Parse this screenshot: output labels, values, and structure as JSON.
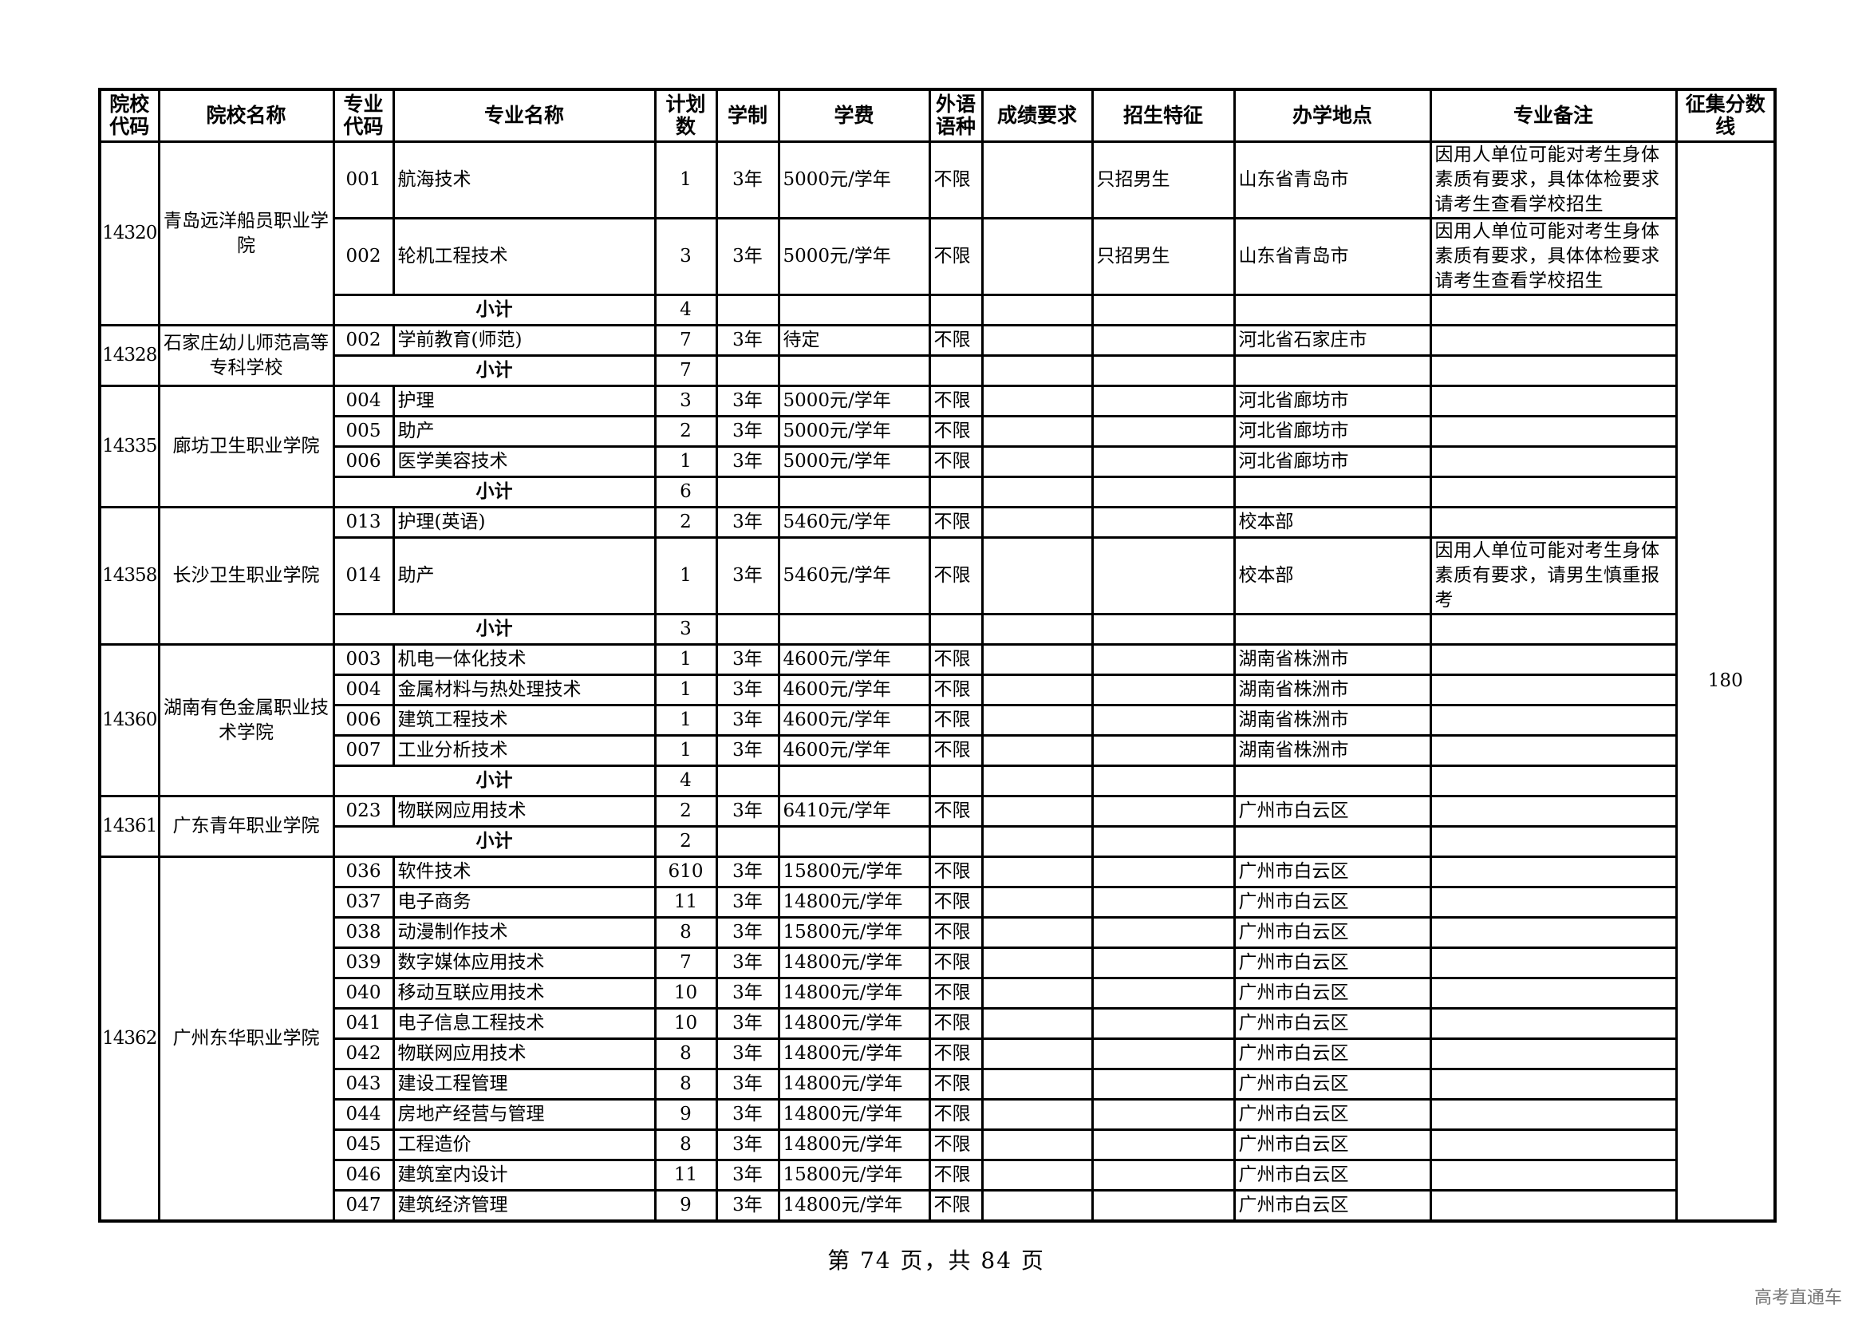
{
  "headers": [
    "院校代码",
    "院校名称",
    "专业代码",
    "专业名称",
    "计划数",
    "学制",
    "学费",
    "外语语种",
    "成绩要求",
    "招生特征",
    "办学地点",
    "专业备注",
    "征集分数线"
  ],
  "score_line": "180",
  "schools": [
    {
      "code": "14320",
      "name": "青岛远洋船员职业学院",
      "majors": [
        {
          "code": "001",
          "name": "航海技术",
          "plan": "1",
          "duration": "3年",
          "fee": "5000元/学年",
          "lang": "不限",
          "score_req": "",
          "feature": "只招男生",
          "location": "山东省青岛市",
          "remark": "因用人单位可能对考生身体素质有要求，具体体检要求请考生查看学校招生"
        },
        {
          "code": "002",
          "name": "轮机工程技术",
          "plan": "3",
          "duration": "3年",
          "fee": "5000元/学年",
          "lang": "不限",
          "score_req": "",
          "feature": "只招男生",
          "location": "山东省青岛市",
          "remark": "因用人单位可能对考生身体素质有要求，具体体检要求请考生查看学校招生"
        }
      ],
      "subtotal": {
        "label": "小计",
        "plan": "4"
      }
    },
    {
      "code": "14328",
      "name": "石家庄幼儿师范高等专科学校",
      "majors": [
        {
          "code": "002",
          "name": "学前教育(师范)",
          "plan": "7",
          "duration": "3年",
          "fee": "待定",
          "lang": "不限",
          "score_req": "",
          "feature": "",
          "location": "河北省石家庄市",
          "remark": ""
        }
      ],
      "subtotal": {
        "label": "小计",
        "plan": "7"
      }
    },
    {
      "code": "14335",
      "name": "廊坊卫生职业学院",
      "majors": [
        {
          "code": "004",
          "name": "护理",
          "plan": "3",
          "duration": "3年",
          "fee": "5000元/学年",
          "lang": "不限",
          "score_req": "",
          "feature": "",
          "location": "河北省廊坊市",
          "remark": ""
        },
        {
          "code": "005",
          "name": "助产",
          "plan": "2",
          "duration": "3年",
          "fee": "5000元/学年",
          "lang": "不限",
          "score_req": "",
          "feature": "",
          "location": "河北省廊坊市",
          "remark": ""
        },
        {
          "code": "006",
          "name": "医学美容技术",
          "plan": "1",
          "duration": "3年",
          "fee": "5000元/学年",
          "lang": "不限",
          "score_req": "",
          "feature": "",
          "location": "河北省廊坊市",
          "remark": ""
        }
      ],
      "subtotal": {
        "label": "小计",
        "plan": "6"
      }
    },
    {
      "code": "14358",
      "name": "长沙卫生职业学院",
      "majors": [
        {
          "code": "013",
          "name": "护理(英语)",
          "plan": "2",
          "duration": "3年",
          "fee": "5460元/学年",
          "lang": "不限",
          "score_req": "",
          "feature": "",
          "location": "校本部",
          "remark": ""
        },
        {
          "code": "014",
          "name": "助产",
          "plan": "1",
          "duration": "3年",
          "fee": "5460元/学年",
          "lang": "不限",
          "score_req": "",
          "feature": "",
          "location": "校本部",
          "remark": "因用人单位可能对考生身体素质有要求，请男生慎重报考"
        }
      ],
      "subtotal": {
        "label": "小计",
        "plan": "3"
      }
    },
    {
      "code": "14360",
      "name": "湖南有色金属职业技术学院",
      "majors": [
        {
          "code": "003",
          "name": "机电一体化技术",
          "plan": "1",
          "duration": "3年",
          "fee": "4600元/学年",
          "lang": "不限",
          "score_req": "",
          "feature": "",
          "location": "湖南省株洲市",
          "remark": ""
        },
        {
          "code": "004",
          "name": "金属材料与热处理技术",
          "plan": "1",
          "duration": "3年",
          "fee": "4600元/学年",
          "lang": "不限",
          "score_req": "",
          "feature": "",
          "location": "湖南省株洲市",
          "remark": ""
        },
        {
          "code": "006",
          "name": "建筑工程技术",
          "plan": "1",
          "duration": "3年",
          "fee": "4600元/学年",
          "lang": "不限",
          "score_req": "",
          "feature": "",
          "location": "湖南省株洲市",
          "remark": ""
        },
        {
          "code": "007",
          "name": "工业分析技术",
          "plan": "1",
          "duration": "3年",
          "fee": "4600元/学年",
          "lang": "不限",
          "score_req": "",
          "feature": "",
          "location": "湖南省株洲市",
          "remark": ""
        }
      ],
      "subtotal": {
        "label": "小计",
        "plan": "4"
      }
    },
    {
      "code": "14361",
      "name": "广东青年职业学院",
      "majors": [
        {
          "code": "023",
          "name": "物联网应用技术",
          "plan": "2",
          "duration": "3年",
          "fee": "6410元/学年",
          "lang": "不限",
          "score_req": "",
          "feature": "",
          "location": "广州市白云区",
          "remark": ""
        }
      ],
      "subtotal": {
        "label": "小计",
        "plan": "2"
      }
    },
    {
      "code": "14362",
      "name": "广州东华职业学院",
      "majors": [
        {
          "code": "036",
          "name": "软件技术",
          "plan": "610",
          "duration": "3年",
          "fee": "15800元/学年",
          "lang": "不限",
          "score_req": "",
          "feature": "",
          "location": "广州市白云区",
          "remark": ""
        },
        {
          "code": "037",
          "name": "电子商务",
          "plan": "11",
          "duration": "3年",
          "fee": "14800元/学年",
          "lang": "不限",
          "score_req": "",
          "feature": "",
          "location": "广州市白云区",
          "remark": ""
        },
        {
          "code": "038",
          "name": "动漫制作技术",
          "plan": "8",
          "duration": "3年",
          "fee": "15800元/学年",
          "lang": "不限",
          "score_req": "",
          "feature": "",
          "location": "广州市白云区",
          "remark": ""
        },
        {
          "code": "039",
          "name": "数字媒体应用技术",
          "plan": "7",
          "duration": "3年",
          "fee": "14800元/学年",
          "lang": "不限",
          "score_req": "",
          "feature": "",
          "location": "广州市白云区",
          "remark": ""
        },
        {
          "code": "040",
          "name": "移动互联应用技术",
          "plan": "10",
          "duration": "3年",
          "fee": "14800元/学年",
          "lang": "不限",
          "score_req": "",
          "feature": "",
          "location": "广州市白云区",
          "remark": ""
        },
        {
          "code": "041",
          "name": "电子信息工程技术",
          "plan": "10",
          "duration": "3年",
          "fee": "14800元/学年",
          "lang": "不限",
          "score_req": "",
          "feature": "",
          "location": "广州市白云区",
          "remark": ""
        },
        {
          "code": "042",
          "name": "物联网应用技术",
          "plan": "8",
          "duration": "3年",
          "fee": "14800元/学年",
          "lang": "不限",
          "score_req": "",
          "feature": "",
          "location": "广州市白云区",
          "remark": ""
        },
        {
          "code": "043",
          "name": "建设工程管理",
          "plan": "8",
          "duration": "3年",
          "fee": "14800元/学年",
          "lang": "不限",
          "score_req": "",
          "feature": "",
          "location": "广州市白云区",
          "remark": ""
        },
        {
          "code": "044",
          "name": "房地产经营与管理",
          "plan": "9",
          "duration": "3年",
          "fee": "14800元/学年",
          "lang": "不限",
          "score_req": "",
          "feature": "",
          "location": "广州市白云区",
          "remark": ""
        },
        {
          "code": "045",
          "name": "工程造价",
          "plan": "8",
          "duration": "3年",
          "fee": "14800元/学年",
          "lang": "不限",
          "score_req": "",
          "feature": "",
          "location": "广州市白云区",
          "remark": ""
        },
        {
          "code": "046",
          "name": "建筑室内设计",
          "plan": "11",
          "duration": "3年",
          "fee": "15800元/学年",
          "lang": "不限",
          "score_req": "",
          "feature": "",
          "location": "广州市白云区",
          "remark": ""
        },
        {
          "code": "047",
          "name": "建筑经济管理",
          "plan": "9",
          "duration": "3年",
          "fee": "14800元/学年",
          "lang": "不限",
          "score_req": "",
          "feature": "",
          "location": "广州市白云区",
          "remark": ""
        }
      ]
    }
  ],
  "footer": {
    "page_info": "第 74 页，共 84 页"
  },
  "watermark": "高考直通车"
}
